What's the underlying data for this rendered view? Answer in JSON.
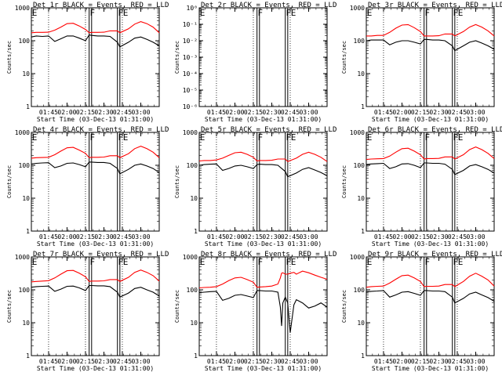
{
  "chart_data": [
    {
      "type": "line",
      "title": "Det 1r BLACK = Events, RED = LLD",
      "xlabel": "Start Time (03-Dec-13 01:31:00)",
      "ylabel": "Counts/sec",
      "yscale": "log",
      "ylim": [
        1,
        1000
      ],
      "ytick_labels": [
        "1",
        "10",
        "100",
        "1000"
      ],
      "xlim_minutes": [
        0,
        104
      ],
      "xtick_labels": [
        "01:45",
        "02:00",
        "02:15",
        "02:30",
        "02:45",
        "03:00"
      ],
      "dotted_vlines_at": [
        "01:45",
        "02:15",
        "02:45"
      ],
      "solid_vline_pairs": [
        [
          "02:18",
          "02:20"
        ],
        [
          "02:41",
          "02:43"
        ]
      ],
      "marker_letters": [
        "E",
        "F",
        "F",
        "E"
      ],
      "x": [
        "01:31",
        "01:35",
        "01:40",
        "01:45",
        "01:50",
        "01:55",
        "02:00",
        "02:05",
        "02:10",
        "02:15",
        "02:18",
        "02:20",
        "02:25",
        "02:30",
        "02:35",
        "02:41",
        "02:43",
        "02:50",
        "02:55",
        "03:00",
        "03:05",
        "03:10",
        "03:15"
      ],
      "series": [
        {
          "name": "LLD",
          "color": "#ff0000",
          "values": [
            175,
            180,
            180,
            182,
            210,
            260,
            330,
            340,
            280,
            220,
            175,
            180,
            180,
            182,
            200,
            200,
            175,
            230,
            320,
            380,
            330,
            260,
            175
          ]
        },
        {
          "name": "Events",
          "color": "#000000",
          "values": [
            130,
            140,
            135,
            140,
            95,
            115,
            140,
            140,
            120,
            100,
            150,
            145,
            140,
            140,
            135,
            90,
            65,
            90,
            120,
            130,
            110,
            90,
            70
          ]
        }
      ]
    },
    {
      "type": "line",
      "title": "Det 2r BLACK = Events, RED = LLD",
      "xlabel": "Start Time (03-Dec-13 01:31:00)",
      "ylabel": "Counts/sec",
      "yscale": "log",
      "ylim": [
        1e-06,
        1
      ],
      "ytick_labels": [
        "10⁻⁶",
        "10⁻⁵",
        "10⁻⁴",
        "10⁻³",
        "10⁻²",
        "10⁻¹",
        "10⁰"
      ],
      "xlim_minutes": [
        0,
        104
      ],
      "xtick_labels": [
        "01:45",
        "02:00",
        "02:15",
        "02:30",
        "02:45",
        "03:00"
      ],
      "dotted_vlines_at": [
        "01:45",
        "02:15",
        "02:45"
      ],
      "solid_vline_pairs": [
        [
          "02:18",
          "02:20"
        ],
        [
          "02:41",
          "02:43"
        ]
      ],
      "marker_letters": [
        "E",
        "F",
        "F",
        "E"
      ],
      "x": [],
      "series": []
    },
    {
      "type": "line",
      "title": "Det 3r BLACK = Events, RED = LLD",
      "xlabel": "Start Time (03-Dec-13 01:31:00)",
      "ylabel": "Counts/sec",
      "yscale": "log",
      "ylim": [
        1,
        1000
      ],
      "ytick_labels": [
        "1",
        "10",
        "100",
        "1000"
      ],
      "xlim_minutes": [
        0,
        104
      ],
      "xtick_labels": [
        "01:45",
        "02:00",
        "02:15",
        "02:30",
        "02:45",
        "03:00"
      ],
      "dotted_vlines_at": [
        "01:45",
        "02:15",
        "02:45"
      ],
      "solid_vline_pairs": [
        [
          "02:18",
          "02:20"
        ],
        [
          "02:41",
          "02:43"
        ]
      ],
      "marker_letters": [
        "E",
        "F",
        "F",
        "E"
      ],
      "x": [
        "01:31",
        "01:35",
        "01:40",
        "01:45",
        "01:50",
        "01:55",
        "02:00",
        "02:05",
        "02:10",
        "02:15",
        "02:18",
        "02:20",
        "02:25",
        "02:30",
        "02:35",
        "02:41",
        "02:43",
        "02:50",
        "02:55",
        "03:00",
        "03:05",
        "03:10",
        "03:15"
      ],
      "series": [
        {
          "name": "LLD",
          "color": "#ff0000",
          "values": [
            140,
            140,
            145,
            145,
            180,
            240,
            300,
            310,
            250,
            190,
            140,
            140,
            140,
            142,
            160,
            160,
            140,
            190,
            260,
            310,
            260,
            200,
            140
          ]
        },
        {
          "name": "Events",
          "color": "#000000",
          "values": [
            100,
            105,
            105,
            105,
            75,
            90,
            100,
            100,
            90,
            80,
            110,
            110,
            105,
            105,
            100,
            70,
            50,
            70,
            90,
            100,
            85,
            70,
            55
          ]
        }
      ]
    },
    {
      "type": "line",
      "title": "Det 4r BLACK = Events, RED = LLD",
      "xlabel": "Start Time (03-Dec-13 01:31:00)",
      "ylabel": "Counts/sec",
      "yscale": "log",
      "ylim": [
        1,
        1000
      ],
      "ytick_labels": [
        "1",
        "10",
        "100",
        "1000"
      ],
      "xlim_minutes": [
        0,
        104
      ],
      "xtick_labels": [
        "01:45",
        "02:00",
        "02:15",
        "02:30",
        "02:45",
        "03:00"
      ],
      "dotted_vlines_at": [
        "01:45",
        "02:15",
        "02:45"
      ],
      "solid_vline_pairs": [
        [
          "02:18",
          "02:20"
        ],
        [
          "02:41",
          "02:43"
        ]
      ],
      "marker_letters": [
        "E",
        "F",
        "F",
        "E"
      ],
      "x": [
        "01:31",
        "01:35",
        "01:40",
        "01:45",
        "01:50",
        "01:55",
        "02:00",
        "02:05",
        "02:10",
        "02:15",
        "02:18",
        "02:20",
        "02:25",
        "02:30",
        "02:35",
        "02:41",
        "02:43",
        "02:50",
        "02:55",
        "03:00",
        "03:05",
        "03:10",
        "03:15"
      ],
      "series": [
        {
          "name": "LLD",
          "color": "#ff0000",
          "values": [
            165,
            170,
            172,
            175,
            210,
            270,
            340,
            350,
            290,
            230,
            170,
            175,
            175,
            178,
            195,
            195,
            170,
            225,
            320,
            380,
            320,
            250,
            170
          ]
        },
        {
          "name": "Events",
          "color": "#000000",
          "values": [
            110,
            115,
            118,
            120,
            85,
            95,
            115,
            118,
            105,
            90,
            125,
            125,
            122,
            122,
            115,
            80,
            55,
            75,
            100,
            110,
            95,
            80,
            60
          ]
        }
      ]
    },
    {
      "type": "line",
      "title": "Det 5r BLACK = Events, RED = LLD",
      "xlabel": "Start Time (03-Dec-13 01:31:00)",
      "ylabel": "Counts/sec",
      "yscale": "log",
      "ylim": [
        1,
        1000
      ],
      "ytick_labels": [
        "1",
        "10",
        "100",
        "1000"
      ],
      "xlim_minutes": [
        0,
        104
      ],
      "xtick_labels": [
        "01:45",
        "02:00",
        "02:15",
        "02:30",
        "02:45",
        "03:00"
      ],
      "dotted_vlines_at": [
        "01:45",
        "02:15",
        "02:45"
      ],
      "solid_vline_pairs": [
        [
          "02:18",
          "02:20"
        ],
        [
          "02:41",
          "02:43"
        ]
      ],
      "marker_letters": [
        "E",
        "F",
        "F",
        "E"
      ],
      "x": [
        "01:31",
        "01:35",
        "01:40",
        "01:45",
        "01:50",
        "01:55",
        "02:00",
        "02:05",
        "02:10",
        "02:15",
        "02:18",
        "02:20",
        "02:25",
        "02:30",
        "02:35",
        "02:41",
        "02:43",
        "02:50",
        "02:55",
        "03:00",
        "03:05",
        "03:10",
        "03:15"
      ],
      "series": [
        {
          "name": "LLD",
          "color": "#ff0000",
          "values": [
            135,
            140,
            140,
            145,
            165,
            200,
            240,
            250,
            215,
            175,
            135,
            140,
            140,
            142,
            155,
            155,
            130,
            165,
            215,
            250,
            215,
            175,
            130
          ]
        },
        {
          "name": "Events",
          "color": "#000000",
          "values": [
            100,
            105,
            108,
            110,
            70,
            80,
            95,
            100,
            90,
            80,
            105,
            108,
            105,
            105,
            100,
            65,
            45,
            58,
            75,
            85,
            72,
            60,
            48
          ]
        }
      ]
    },
    {
      "type": "line",
      "title": "Det 6r BLACK = Events, RED = LLD",
      "xlabel": "Start Time (03-Dec-13 01:31:00)",
      "ylabel": "Counts/sec",
      "yscale": "log",
      "ylim": [
        1,
        1000
      ],
      "ytick_labels": [
        "1",
        "10",
        "100",
        "1000"
      ],
      "xlim_minutes": [
        0,
        104
      ],
      "xtick_labels": [
        "01:45",
        "02:00",
        "02:15",
        "02:30",
        "02:45",
        "03:00"
      ],
      "dotted_vlines_at": [
        "01:45",
        "02:15",
        "02:45"
      ],
      "solid_vline_pairs": [
        [
          "02:18",
          "02:20"
        ],
        [
          "02:41",
          "02:43"
        ]
      ],
      "marker_letters": [
        "E",
        "F",
        "F",
        "E"
      ],
      "x": [
        "01:31",
        "01:35",
        "01:40",
        "01:45",
        "01:50",
        "01:55",
        "02:00",
        "02:05",
        "02:10",
        "02:15",
        "02:18",
        "02:20",
        "02:25",
        "02:30",
        "02:35",
        "02:41",
        "02:43",
        "02:50",
        "02:55",
        "03:00",
        "03:05",
        "03:10",
        "03:15"
      ],
      "series": [
        {
          "name": "LLD",
          "color": "#ff0000",
          "values": [
            150,
            155,
            158,
            160,
            190,
            250,
            320,
            330,
            270,
            210,
            155,
            160,
            160,
            162,
            180,
            180,
            155,
            210,
            300,
            360,
            300,
            230,
            160
          ]
        },
        {
          "name": "Events",
          "color": "#000000",
          "values": [
            105,
            110,
            112,
            115,
            80,
            90,
            110,
            112,
            100,
            85,
            118,
            118,
            115,
            115,
            108,
            75,
            52,
            70,
            95,
            105,
            90,
            75,
            58
          ]
        }
      ]
    },
    {
      "type": "line",
      "title": "Det 7r BLACK = Events, RED = LLD",
      "xlabel": "Start Time (03-Dec-13 01:31:00)",
      "ylabel": "Counts/sec",
      "yscale": "log",
      "ylim": [
        1,
        1000
      ],
      "ytick_labels": [
        "1",
        "10",
        "100",
        "1000"
      ],
      "xlim_minutes": [
        0,
        104
      ],
      "xtick_labels": [
        "01:45",
        "02:00",
        "02:15",
        "02:30",
        "02:45",
        "03:00"
      ],
      "dotted_vlines_at": [
        "01:45",
        "02:15",
        "02:45"
      ],
      "solid_vline_pairs": [
        [
          "02:18",
          "02:20"
        ],
        [
          "02:41",
          "02:43"
        ]
      ],
      "marker_letters": [
        "E",
        "F",
        "F",
        "E"
      ],
      "x": [
        "01:31",
        "01:35",
        "01:40",
        "01:45",
        "01:50",
        "01:55",
        "02:00",
        "02:05",
        "02:10",
        "02:15",
        "02:18",
        "02:20",
        "02:25",
        "02:30",
        "02:35",
        "02:41",
        "02:43",
        "02:50",
        "02:55",
        "03:00",
        "03:05",
        "03:10",
        "03:15"
      ],
      "series": [
        {
          "name": "LLD",
          "color": "#ff0000",
          "values": [
            175,
            180,
            185,
            190,
            230,
            300,
            380,
            390,
            320,
            250,
            180,
            185,
            185,
            188,
            205,
            205,
            180,
            240,
            340,
            400,
            340,
            270,
            185
          ]
        },
        {
          "name": "Events",
          "color": "#000000",
          "values": [
            120,
            125,
            128,
            130,
            90,
            105,
            128,
            130,
            115,
            95,
            135,
            135,
            132,
            132,
            125,
            85,
            60,
            80,
            110,
            120,
            100,
            85,
            65
          ]
        }
      ]
    },
    {
      "type": "line",
      "title": "Det 8r BLACK = Events, RED = LLD",
      "xlabel": "Start Time (03-Dec-13 01:31:00)",
      "ylabel": "Counts/sec",
      "yscale": "log",
      "ylim": [
        1,
        1000
      ],
      "ytick_labels": [
        "1",
        "10",
        "100",
        "1000"
      ],
      "xlim_minutes": [
        0,
        104
      ],
      "xtick_labels": [
        "01:45",
        "02:00",
        "02:15",
        "02:30",
        "02:45",
        "03:00"
      ],
      "dotted_vlines_at": [
        "01:45",
        "02:15",
        "02:45"
      ],
      "solid_vline_pairs": [
        [
          "02:18",
          "02:20"
        ],
        [
          "02:41",
          "02:43"
        ]
      ],
      "marker_letters": [
        "E",
        "F",
        "F",
        "E"
      ],
      "x": [
        "01:31",
        "01:35",
        "01:40",
        "01:45",
        "01:50",
        "01:55",
        "02:00",
        "02:05",
        "02:10",
        "02:15",
        "02:18",
        "02:20",
        "02:25",
        "02:30",
        "02:35",
        "02:37",
        "02:38",
        "02:39",
        "02:41",
        "02:43",
        "02:45",
        "02:48",
        "02:50",
        "02:55",
        "03:00",
        "03:05",
        "03:10",
        "03:15"
      ],
      "series": [
        {
          "name": "LLD",
          "color": "#ff0000",
          "values": [
            115,
            118,
            120,
            125,
            150,
            190,
            230,
            240,
            205,
            170,
            120,
            122,
            125,
            130,
            150,
            230,
            320,
            330,
            300,
            300,
            320,
            340,
            300,
            370,
            330,
            280,
            240,
            210
          ]
        },
        {
          "name": "Events",
          "color": "#000000",
          "values": [
            82,
            85,
            88,
            90,
            48,
            55,
            68,
            72,
            65,
            58,
            95,
            95,
            92,
            92,
            85,
            30,
            8,
            40,
            60,
            40,
            5,
            35,
            50,
            40,
            28,
            32,
            40,
            30
          ]
        }
      ]
    },
    {
      "type": "line",
      "title": "Det 9r BLACK = Events, RED = LLD",
      "xlabel": "Start Time (03-Dec-13 01:31:00)",
      "ylabel": "Counts/sec",
      "yscale": "log",
      "ylim": [
        1,
        1000
      ],
      "ytick_labels": [
        "1",
        "10",
        "100",
        "1000"
      ],
      "xlim_minutes": [
        0,
        104
      ],
      "xtick_labels": [
        "01:45",
        "02:00",
        "02:15",
        "02:30",
        "02:45",
        "03:00"
      ],
      "dotted_vlines_at": [
        "01:45",
        "02:15",
        "02:45"
      ],
      "solid_vline_pairs": [
        [
          "02:18",
          "02:20"
        ],
        [
          "02:41",
          "02:43"
        ]
      ],
      "marker_letters": [
        "E",
        "F",
        "F",
        "E"
      ],
      "x": [
        "01:31",
        "01:35",
        "01:40",
        "01:45",
        "01:50",
        "01:55",
        "02:00",
        "02:05",
        "02:10",
        "02:15",
        "02:18",
        "02:20",
        "02:25",
        "02:30",
        "02:35",
        "02:41",
        "02:43",
        "02:50",
        "02:55",
        "03:00",
        "03:05",
        "03:10",
        "03:15"
      ],
      "series": [
        {
          "name": "LLD",
          "color": "#ff0000",
          "values": [
            120,
            125,
            128,
            130,
            160,
            210,
            270,
            280,
            230,
            180,
            125,
            128,
            128,
            130,
            145,
            145,
            125,
            180,
            260,
            320,
            260,
            200,
            130
          ]
        },
        {
          "name": "Events",
          "color": "#000000",
          "values": [
            85,
            90,
            92,
            95,
            60,
            70,
            85,
            88,
            78,
            68,
            95,
            95,
            92,
            92,
            88,
            60,
            40,
            55,
            75,
            85,
            70,
            58,
            45
          ]
        }
      ]
    }
  ]
}
